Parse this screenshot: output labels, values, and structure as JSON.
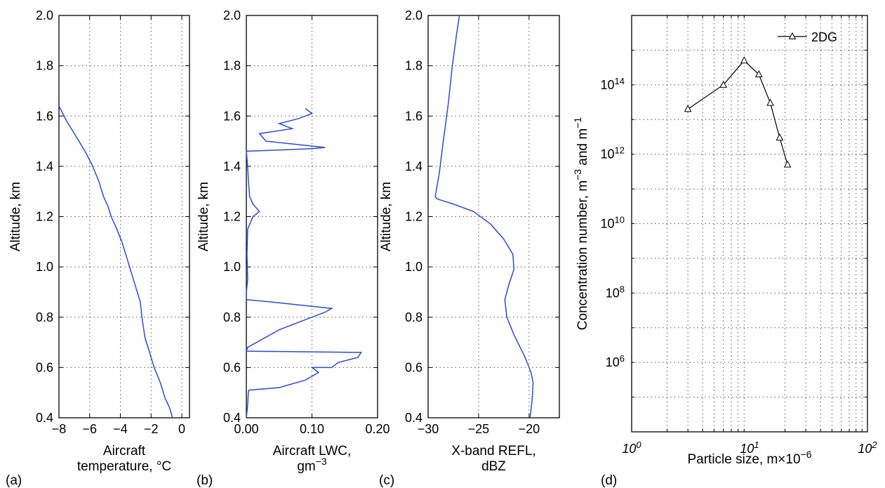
{
  "colors": {
    "series": "#2b4bdc",
    "dist": "#000000",
    "grid": "#555555"
  },
  "chart_data": [
    {
      "id": "a",
      "type": "line",
      "panel_label": "(a)",
      "xlabel": [
        "Aircraft",
        "temperature, °C"
      ],
      "ylabel": "Altitude, km",
      "xlim": [
        -8,
        0.5
      ],
      "ylim": [
        0.4,
        2.0
      ],
      "xticks": [
        -8,
        -6,
        -4,
        -2,
        0
      ],
      "xtick_labels": [
        "−8",
        "−6",
        "−4",
        "−2",
        "0"
      ],
      "yticks": [
        0.4,
        0.6,
        0.8,
        1.0,
        1.2,
        1.4,
        1.6,
        1.8,
        2.0
      ],
      "ytick_labels": [
        "0.4",
        "0.6",
        "0.8",
        "1.0",
        "1.2",
        "1.4",
        "1.6",
        "1.8",
        "2.0"
      ],
      "grid": true,
      "series": [
        {
          "points": [
            [
              -0.6,
              0.4
            ],
            [
              -0.8,
              0.44
            ],
            [
              -1.1,
              0.48
            ],
            [
              -1.4,
              0.54
            ],
            [
              -1.8,
              0.6
            ],
            [
              -2.1,
              0.66
            ],
            [
              -2.4,
              0.72
            ],
            [
              -2.6,
              0.8
            ],
            [
              -2.7,
              0.86
            ],
            [
              -3.0,
              0.92
            ],
            [
              -3.3,
              0.98
            ],
            [
              -3.6,
              1.04
            ],
            [
              -3.9,
              1.1
            ],
            [
              -4.3,
              1.16
            ],
            [
              -4.6,
              1.2
            ],
            [
              -4.8,
              1.24
            ],
            [
              -5.1,
              1.28
            ],
            [
              -5.4,
              1.34
            ],
            [
              -5.8,
              1.4
            ],
            [
              -6.3,
              1.46
            ],
            [
              -6.9,
              1.52
            ],
            [
              -7.5,
              1.58
            ],
            [
              -8.0,
              1.64
            ]
          ]
        }
      ]
    },
    {
      "id": "b",
      "type": "line",
      "panel_label": "(b)",
      "xlabel": [
        "Aircraft LWC,",
        "gm−3"
      ],
      "ylabel": "Altitude, km",
      "xlim": [
        0,
        0.2
      ],
      "ylim": [
        0.4,
        2.0
      ],
      "xticks": [
        0,
        0.1,
        0.2
      ],
      "xtick_labels": [
        "0.00",
        "0.10",
        "0.20"
      ],
      "yticks": [
        0.4,
        0.6,
        0.8,
        1.0,
        1.2,
        1.4,
        1.6,
        1.8,
        2.0
      ],
      "ytick_labels": [
        "0.4",
        "0.6",
        "0.8",
        "1.0",
        "1.2",
        "1.4",
        "1.6",
        "1.8",
        "2.0"
      ],
      "grid": true,
      "series": [
        {
          "points": [
            [
              0.0,
              0.4
            ],
            [
              0.002,
              0.45
            ],
            [
              0.003,
              0.5
            ],
            [
              0.004,
              0.51
            ],
            [
              0.05,
              0.52
            ],
            [
              0.09,
              0.55
            ],
            [
              0.11,
              0.58
            ],
            [
              0.1,
              0.6
            ],
            [
              0.13,
              0.6
            ],
            [
              0.14,
              0.62
            ],
            [
              0.17,
              0.64
            ],
            [
              0.175,
              0.66
            ],
            [
              0.0,
              0.665
            ],
            [
              0.002,
              0.68
            ],
            [
              0.05,
              0.75
            ],
            [
              0.09,
              0.79
            ],
            [
              0.12,
              0.82
            ],
            [
              0.13,
              0.835
            ],
            [
              0.04,
              0.86
            ],
            [
              0.0,
              0.87
            ],
            [
              0.0,
              0.9
            ],
            [
              0.002,
              0.95
            ],
            [
              0.001,
              1.05
            ],
            [
              0.002,
              1.15
            ],
            [
              0.01,
              1.2
            ],
            [
              0.02,
              1.22
            ],
            [
              0.01,
              1.25
            ],
            [
              0.005,
              1.28
            ],
            [
              0.003,
              1.35
            ],
            [
              0.002,
              1.4
            ],
            [
              0.0,
              1.46
            ],
            [
              0.05,
              1.465
            ],
            [
              0.1,
              1.47
            ],
            [
              0.12,
              1.475
            ],
            [
              0.03,
              1.5
            ],
            [
              0.02,
              1.53
            ],
            [
              0.07,
              1.55
            ],
            [
              0.05,
              1.57
            ],
            [
              0.08,
              1.59
            ],
            [
              0.1,
              1.61
            ],
            [
              0.09,
              1.63
            ]
          ]
        }
      ]
    },
    {
      "id": "c",
      "type": "line",
      "panel_label": "(c)",
      "xlabel": [
        "X-band REFL,",
        "dBZ"
      ],
      "ylabel": "Altitude, km",
      "xlim": [
        -30,
        -17
      ],
      "ylim": [
        0.4,
        2.0
      ],
      "xticks": [
        -30,
        -25,
        -20
      ],
      "xtick_labels": [
        "−30",
        "−25",
        "−20"
      ],
      "yticks": [
        0.4,
        0.6,
        0.8,
        1.0,
        1.2,
        1.4,
        1.6,
        1.8,
        2.0
      ],
      "ytick_labels": [
        "0.4",
        "0.6",
        "0.8",
        "1.0",
        "1.2",
        "1.4",
        "1.6",
        "1.8",
        "2.0"
      ],
      "grid": true,
      "series": [
        {
          "points": [
            [
              -19.9,
              0.4
            ],
            [
              -19.7,
              0.47
            ],
            [
              -19.6,
              0.54
            ],
            [
              -19.8,
              0.58
            ],
            [
              -20.5,
              0.65
            ],
            [
              -21.5,
              0.73
            ],
            [
              -22.2,
              0.8
            ],
            [
              -22.4,
              0.87
            ],
            [
              -22.0,
              0.93
            ],
            [
              -21.5,
              0.99
            ],
            [
              -21.6,
              1.05
            ],
            [
              -22.5,
              1.11
            ],
            [
              -23.8,
              1.17
            ],
            [
              -25.5,
              1.22
            ],
            [
              -27.5,
              1.25
            ],
            [
              -29.1,
              1.27
            ],
            [
              -29.3,
              1.28
            ],
            [
              -28.9,
              1.37
            ],
            [
              -28.5,
              1.5
            ],
            [
              -28.0,
              1.65
            ],
            [
              -27.6,
              1.8
            ],
            [
              -27.2,
              1.92
            ],
            [
              -26.9,
              2.0
            ]
          ]
        }
      ]
    },
    {
      "id": "d",
      "type": "line",
      "panel_label": "(d)",
      "xlabel": [
        "Particle size, m×10−6"
      ],
      "ylabel": "Concentration number, m−3 and m−1",
      "xscale": "log",
      "yscale": "log",
      "xlim": [
        1,
        100
      ],
      "ylim": [
        10000,
        1e+16
      ],
      "xtick_labels": [
        "10^0",
        "10^1",
        "10^2"
      ],
      "ytick_labels": [
        "10^6",
        "10^8",
        "10^10",
        "10^12",
        "10^14"
      ],
      "grid": true,
      "legend": "top-right",
      "series": [
        {
          "name": "2DG",
          "marker": "triangle",
          "x": [
            3,
            6,
            9,
            12,
            15,
            18,
            21
          ],
          "y": [
            20000000000000.0,
            100000000000000.0,
            500000000000000.0,
            200000000000000.0,
            30000000000000.0,
            3000000000000.0,
            500000000000.0
          ]
        }
      ]
    }
  ]
}
